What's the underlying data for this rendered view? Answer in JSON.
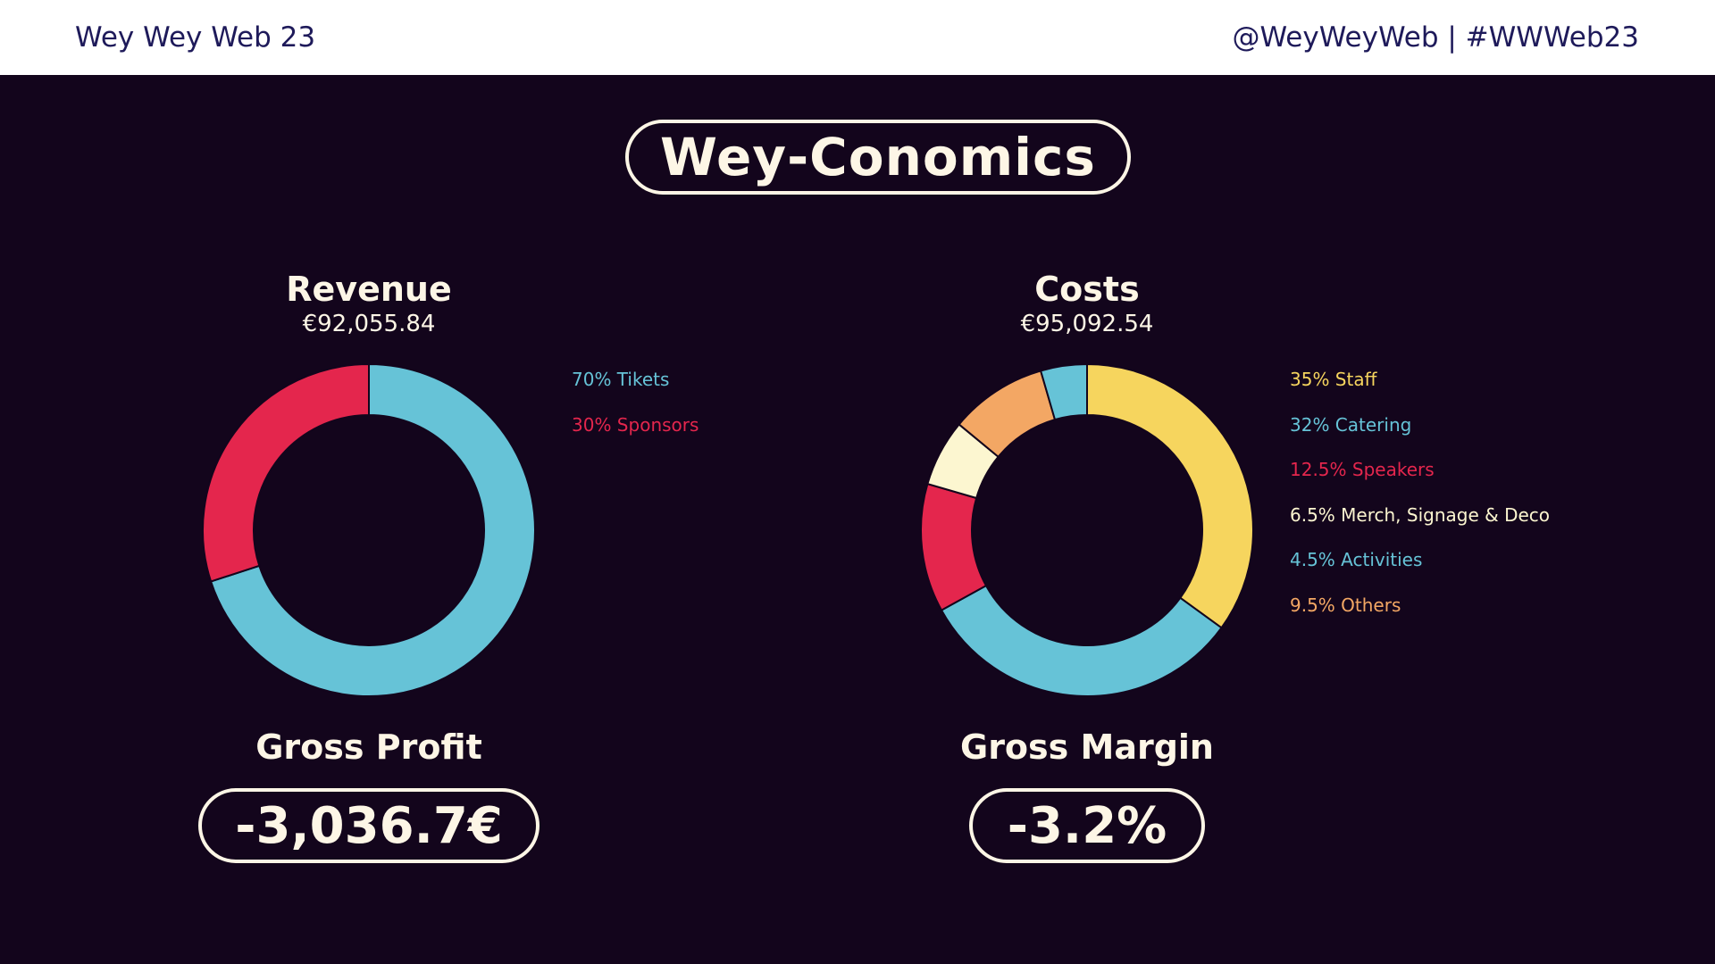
{
  "header": {
    "left": "Wey Wey Web 23",
    "right": "@WeyWeyWeb | #WWWeb23"
  },
  "title": "Wey-Conomics",
  "revenue": {
    "title": "Revenue",
    "amount": "€92,055.84"
  },
  "costs": {
    "title": "Costs",
    "amount": "€95,092.54"
  },
  "gross_profit": {
    "title": "Gross Profit",
    "value": "-3,036.7€"
  },
  "gross_margin": {
    "title": "Gross Margin",
    "value": "-3.2%"
  },
  "colors": {
    "background": "#13051c",
    "text": "#fdf6e6",
    "blue": "#66c3d7",
    "red": "#e4264d",
    "yellow": "#f6d55e",
    "cream": "#fcf6d0",
    "orange": "#f3a764"
  },
  "chart_data": [
    {
      "type": "pie",
      "title": "Revenue",
      "series": [
        {
          "label": "70% Tikets",
          "value": 70,
          "color": "#66c3d7"
        },
        {
          "label": "30% Sponsors",
          "value": 30,
          "color": "#e4264d"
        }
      ]
    },
    {
      "type": "pie",
      "title": "Costs",
      "series": [
        {
          "label": "35% Staff",
          "value": 35,
          "color": "#f6d55e"
        },
        {
          "label": "32% Catering",
          "value": 32,
          "color": "#66c3d7"
        },
        {
          "label": "12.5% Speakers",
          "value": 12.5,
          "color": "#e4264d"
        },
        {
          "label": "6.5% Merch, Signage & Deco",
          "value": 6.5,
          "color": "#fcf6d0"
        },
        {
          "label": "4.5% Activities",
          "value": 4.5,
          "color": "#66c3d7"
        },
        {
          "label": "9.5% Others",
          "value": 9.5,
          "color": "#f3a764"
        }
      ],
      "drawing_order": [
        0,
        1,
        2,
        3,
        5,
        4
      ]
    }
  ]
}
